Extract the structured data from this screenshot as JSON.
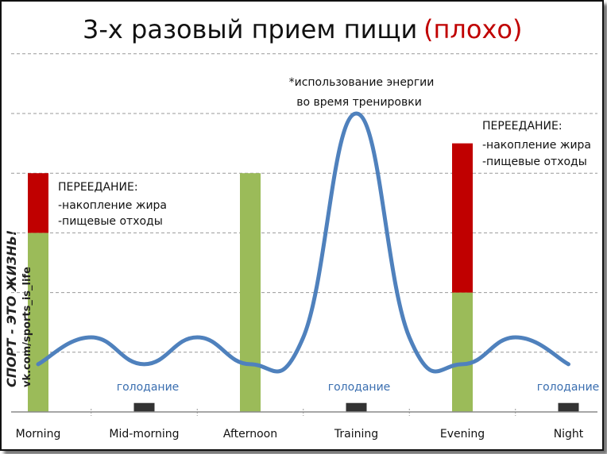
{
  "chart_data": {
    "type": "bar",
    "title": "3-х разовый прием пищи",
    "title_note": "(плохо)",
    "categories": [
      "Morning",
      "Mid-morning",
      "Afternoon",
      "Training",
      "Evening",
      "Night"
    ],
    "ylim": [
      0,
      100
    ],
    "grid": true,
    "series": [
      {
        "color": "#9bbb59",
        "values": [
          60,
          3,
          80,
          3,
          40,
          3
        ]
      },
      {
        "color": "#c00000",
        "values": [
          20,
          0,
          0,
          0,
          50,
          0
        ]
      }
    ],
    "small_markers_color": "#333333",
    "energy_curve": {
      "color": "#4f81bd",
      "x": [
        0,
        0.5,
        1,
        1.5,
        2,
        2.5,
        3,
        3.5,
        4,
        4.5,
        5
      ],
      "y": [
        16,
        25,
        16,
        25,
        16,
        25,
        100,
        25,
        16,
        25,
        16
      ]
    },
    "annotations": {
      "training_note": [
        "*использование энергии",
        "во время тренировки"
      ],
      "overeat_morning": [
        "ПЕРЕЕДАНИЕ:",
        "-накопление жира",
        "-пищевые отходы"
      ],
      "overeat_evening": [
        "ПЕРЕЕДАНИЕ:",
        "-накопление жира",
        "-пищевые отходы"
      ],
      "fasting": [
        "голодание",
        "голодание",
        "голодание"
      ]
    },
    "watermark": [
      "СПОРТ - ЭТО ЖИЗНЬ!",
      "vk.com/sports_is_life"
    ]
  }
}
